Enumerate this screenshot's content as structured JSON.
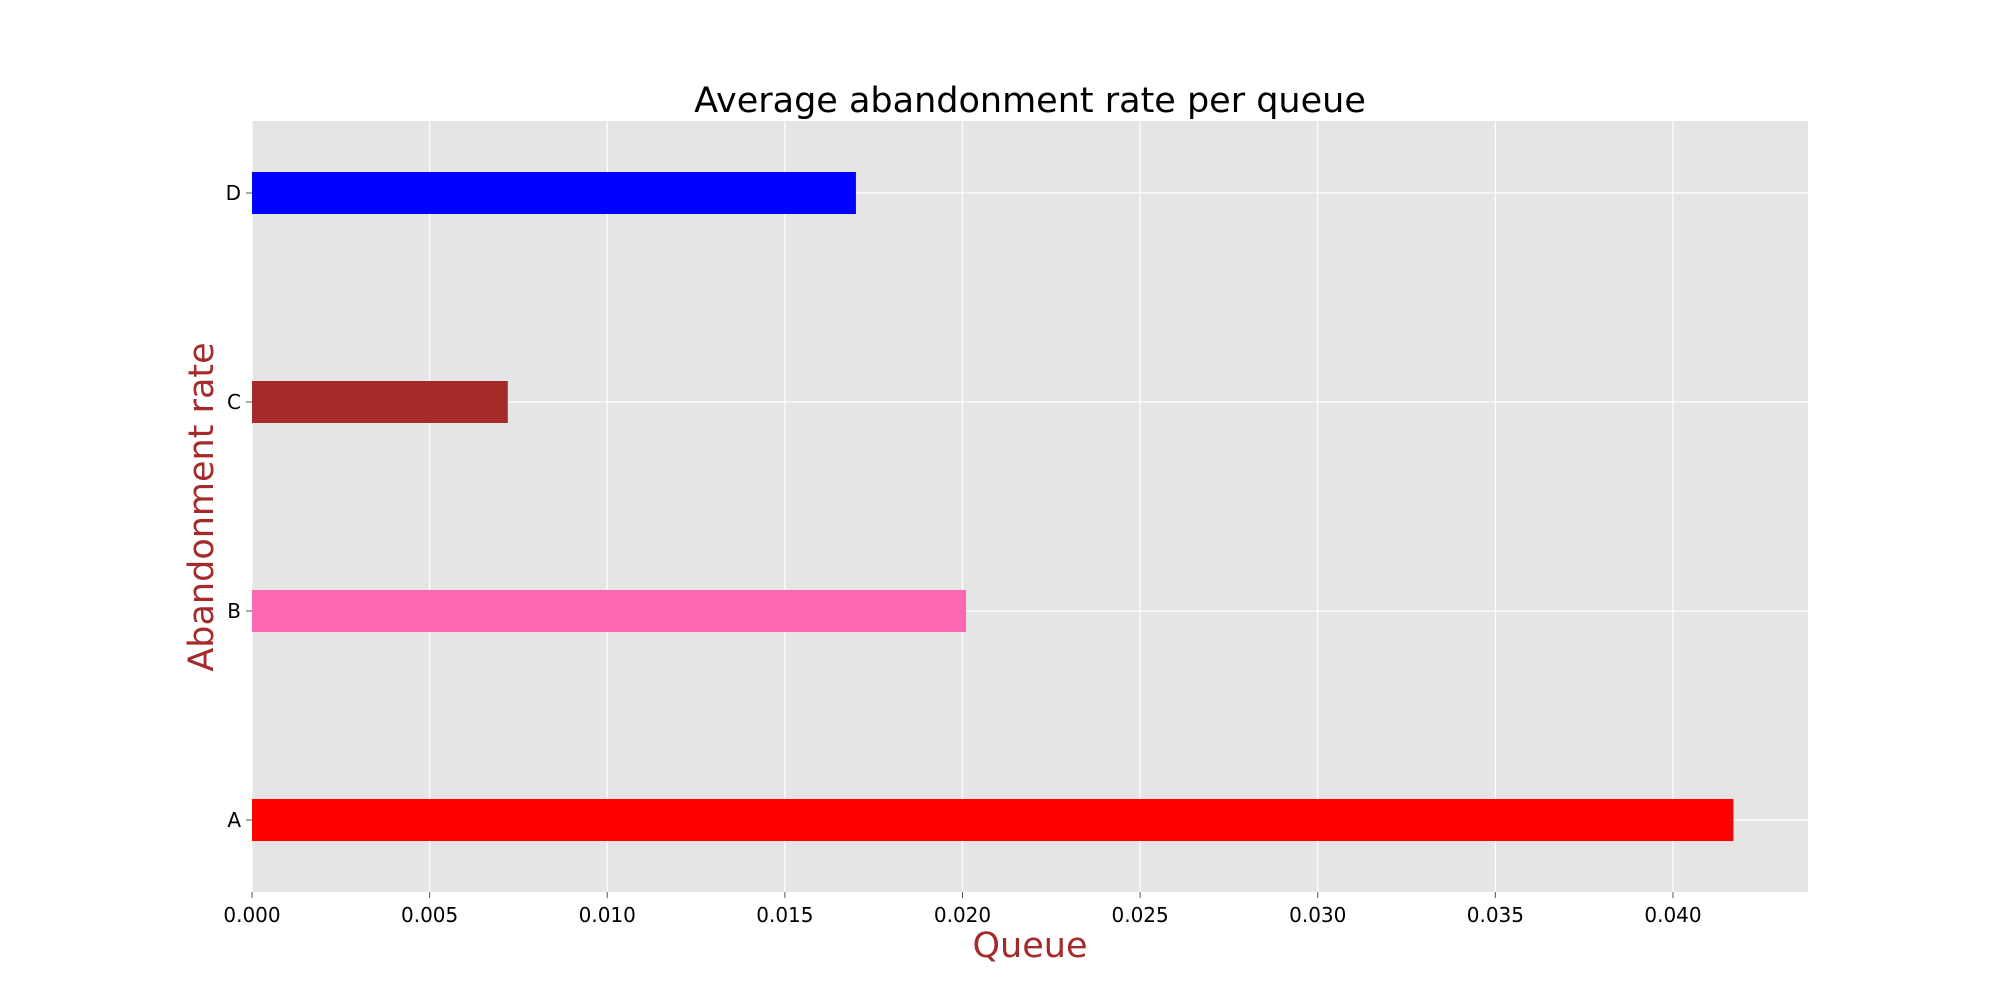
{
  "chart_data": {
    "type": "bar",
    "orientation": "horizontal",
    "title": "Average abandonment rate per queue",
    "xlabel": "Queue",
    "ylabel": "Abandonment rate",
    "categories": [
      "A",
      "B",
      "C",
      "D"
    ],
    "values": [
      0.0417,
      0.0201,
      0.0072,
      0.017
    ],
    "bar_colors": [
      "#ff0000",
      "#ff69b4",
      "#a52a2a",
      "#0000ff"
    ],
    "xlim": [
      0,
      0.0438
    ],
    "xticks": [
      "0.000",
      "0.005",
      "0.010",
      "0.015",
      "0.020",
      "0.025",
      "0.030",
      "0.035",
      "0.040"
    ],
    "grid": true,
    "legend": "none"
  },
  "style": {
    "plot_background": "#e5e5e5",
    "grid_color": "#ffffff",
    "axis_label_color": "#a52a2a",
    "title_color": "#000000"
  }
}
